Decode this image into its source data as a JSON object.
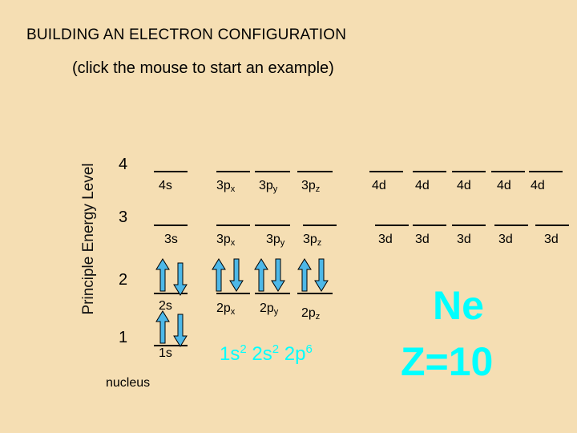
{
  "title": "BUILDING AN ELECTRON CONFIGURATION",
  "subtitle": "(click the mouse to start an example)",
  "y_axis_label": "Principle Energy Level",
  "levels": [
    "4",
    "3",
    "2",
    "1"
  ],
  "orbital_labels": {
    "n4": [
      "4s",
      "3p",
      "3p",
      "3p",
      "4d",
      "4d",
      "4d",
      "4d",
      "4d"
    ],
    "n3": [
      "3s",
      "3p",
      "3p",
      "3p",
      "3d",
      "3d",
      "3d",
      "3d",
      "3d"
    ],
    "n2": [
      "2s",
      "2p",
      "2p",
      "2p"
    ],
    "n1": [
      "1s"
    ]
  },
  "p_subscripts": [
    "x",
    "y",
    "z"
  ],
  "nucleus_label": "nucleus",
  "configuration": {
    "parts": [
      {
        "orbital": "1s",
        "electrons": "2"
      },
      {
        "orbital": "2s",
        "electrons": "2"
      },
      {
        "orbital": "2p",
        "electrons": "6"
      }
    ]
  },
  "element": {
    "symbol": "Ne",
    "atomic_number_label": "Z=10"
  },
  "colors": {
    "background": "#f5deb3",
    "accent": "#00ffff",
    "arrow": "#4db8e8"
  }
}
